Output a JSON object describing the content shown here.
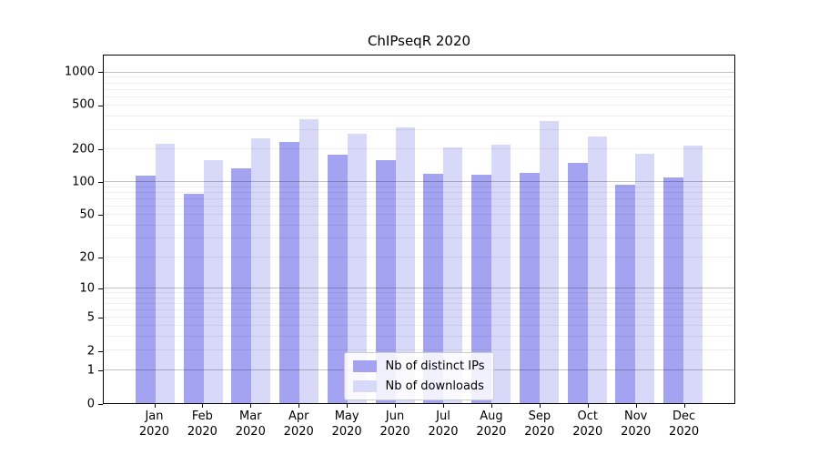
{
  "figure": {
    "title": "ChIPseqR 2020"
  },
  "chart_data": {
    "type": "bar",
    "title": "ChIPseqR 2020",
    "categories": [
      "Jan 2020",
      "Feb 2020",
      "Mar 2020",
      "Apr 2020",
      "May 2020",
      "Jun 2020",
      "Jul 2020",
      "Aug 2020",
      "Sep 2020",
      "Oct 2020",
      "Nov 2020",
      "Dec 2020"
    ],
    "x_months": [
      "Jan",
      "Feb",
      "Mar",
      "Apr",
      "May",
      "Jun",
      "Jul",
      "Aug",
      "Sep",
      "Oct",
      "Nov",
      "Dec"
    ],
    "x_year": "2020",
    "series": [
      {
        "name": "Nb of distinct IPs",
        "color": "#a3a3f2",
        "values": [
          115,
          79,
          135,
          233,
          178,
          160,
          119,
          117,
          121,
          150,
          95,
          110
        ]
      },
      {
        "name": "Nb of downloads",
        "color": "#d8d8f8",
        "values": [
          227,
          161,
          251,
          377,
          280,
          318,
          208,
          219,
          363,
          260,
          183,
          215
        ]
      }
    ],
    "xlabel": "",
    "ylabel": "",
    "yscale": "log1p",
    "ylim": [
      0,
      1430
    ],
    "ytick_values": [
      0,
      1,
      2,
      5,
      10,
      20,
      50,
      100,
      200,
      500,
      1000
    ],
    "ytick_labels": [
      "0",
      "1",
      "2",
      "5",
      "10",
      "20",
      "50",
      "100",
      "200",
      "500",
      "1000"
    ],
    "grid": true,
    "grid_major_at": [
      1,
      10,
      100,
      1000
    ],
    "legend_position": "lower center",
    "legend_entries": [
      "Nb of distinct IPs",
      "Nb of downloads"
    ]
  }
}
